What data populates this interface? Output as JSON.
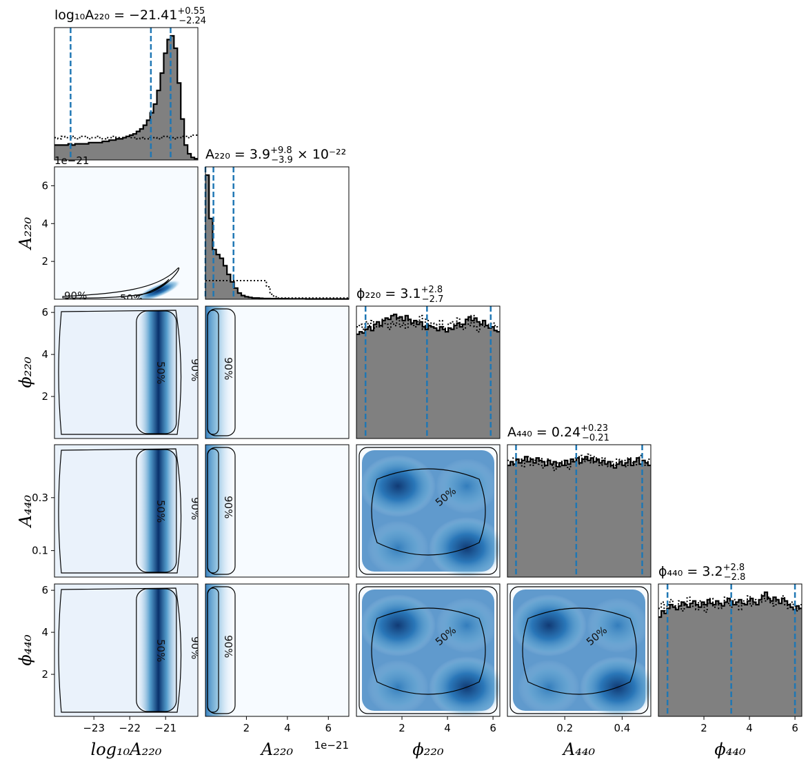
{
  "chart_data": {
    "type": "corner",
    "parameters": [
      {
        "key": "logA220",
        "label": "log₁₀A₂₂₀",
        "range": [
          -24.1,
          -20.1
        ],
        "ticks": [
          -23,
          -22,
          -21
        ],
        "tick_labels": [
          "−23",
          "−22",
          "−21"
        ]
      },
      {
        "key": "A220",
        "label": "A₂₂₀",
        "range": [
          0,
          7.0
        ],
        "ticks": [
          2,
          4,
          6
        ],
        "tick_labels": [
          "2",
          "4",
          "6"
        ],
        "offset_text": "1e−21"
      },
      {
        "key": "phi220",
        "label": "ϕ₂₂₀",
        "range": [
          0,
          6.3
        ],
        "ticks": [
          2,
          4,
          6
        ],
        "tick_labels": [
          "2",
          "4",
          "6"
        ]
      },
      {
        "key": "A440",
        "label": "A₄₄₀",
        "range": [
          0,
          0.5
        ],
        "ticks": [
          0.1,
          0.3
        ],
        "tick_labels": [
          "0.1",
          "0.3"
        ],
        "x_ticks": [
          0.2,
          0.4
        ],
        "x_tick_labels": [
          "0.2",
          "0.4"
        ]
      },
      {
        "key": "phi440",
        "label": "ϕ₄₄₀",
        "range": [
          0,
          6.3
        ],
        "ticks": [
          2,
          4,
          6
        ],
        "tick_labels": [
          "2",
          "4",
          "6"
        ]
      }
    ],
    "titles": [
      {
        "prefix": "log₁₀A₂₂₀ = −21.41",
        "sup": "+0.55",
        "sub": "−2.24",
        "suffix": ""
      },
      {
        "prefix": "A₂₂₀ = 3.9",
        "sup": "+9.8",
        "sub": "−3.9",
        "suffix": " × 10⁻²²"
      },
      {
        "prefix": "ϕ₂₂₀ = 3.1",
        "sup": "+2.8",
        "sub": "−2.7",
        "suffix": ""
      },
      {
        "prefix": "A₄₄₀ = 0.24",
        "sup": "+0.23",
        "sub": "−0.21",
        "suffix": ""
      },
      {
        "prefix": "ϕ₄₄₀ = 3.2",
        "sup": "+2.8",
        "sub": "−2.8",
        "suffix": ""
      }
    ],
    "quantiles": [
      [
        -23.65,
        -21.41,
        -20.86
      ],
      [
        0.0,
        0.39,
        1.37
      ],
      [
        0.4,
        3.1,
        5.9
      ],
      [
        0.03,
        0.24,
        0.47
      ],
      [
        0.4,
        3.2,
        6.0
      ]
    ],
    "histograms": [
      {
        "posterior": [
          0.12,
          0.12,
          0.12,
          0.12,
          0.13,
          0.12,
          0.13,
          0.13,
          0.13,
          0.13,
          0.14,
          0.14,
          0.14,
          0.14,
          0.15,
          0.15,
          0.16,
          0.16,
          0.17,
          0.17,
          0.18,
          0.19,
          0.2,
          0.21,
          0.23,
          0.25,
          0.28,
          0.32,
          0.38,
          0.45,
          0.56,
          0.7,
          0.86,
          0.97,
          1.0,
          0.9,
          0.62,
          0.33,
          0.12,
          0.05,
          0.02,
          0.01
        ],
        "prior": [
          0.18,
          0.17,
          0.19,
          0.18,
          0.18,
          0.19,
          0.17,
          0.18,
          0.19,
          0.18,
          0.17,
          0.18,
          0.19,
          0.18,
          0.17,
          0.18,
          0.18,
          0.19,
          0.18,
          0.17,
          0.18,
          0.19,
          0.18,
          0.18,
          0.17,
          0.18,
          0.17,
          0.17,
          0.18,
          0.18,
          0.17,
          0.18,
          0.19,
          0.18,
          0.18,
          0.17,
          0.18,
          0.19,
          0.19,
          0.18,
          0.2,
          0.2
        ]
      },
      {
        "posterior": [
          1.0,
          0.65,
          0.4,
          0.36,
          0.33,
          0.27,
          0.2,
          0.14,
          0.09,
          0.05,
          0.03,
          0.02,
          0.015,
          0.01,
          0.01,
          0.008,
          0.006,
          0.006,
          0.005,
          0.005,
          0.004,
          0.004,
          0.004,
          0.003,
          0.003,
          0.003,
          0.003,
          0.003,
          0.002,
          0.002,
          0.002,
          0.002,
          0.002,
          0.002,
          0.002,
          0.002,
          0.002,
          0.002,
          0.002,
          0.002
        ],
        "prior": [
          0.15,
          0.15,
          0.15,
          0.15,
          0.15,
          0.15,
          0.15,
          0.15,
          0.15,
          0.15,
          0.15,
          0.15,
          0.15,
          0.15,
          0.15,
          0.15,
          0.15,
          0.1,
          0.04,
          0.02,
          0.01,
          0.01,
          0.01,
          0.01,
          0.01,
          0.01,
          0.01,
          0.01,
          0.01,
          0.01,
          0.01,
          0.01,
          0.01,
          0.01,
          0.01,
          0.01,
          0.01,
          0.01,
          0.01,
          0.01
        ]
      },
      {
        "posterior": [
          0.84,
          0.86,
          0.85,
          0.88,
          0.9,
          0.87,
          0.92,
          0.94,
          0.91,
          0.95,
          0.97,
          0.96,
          0.99,
          1.0,
          0.97,
          0.98,
          0.95,
          0.99,
          0.96,
          0.93,
          0.95,
          0.92,
          0.94,
          0.9,
          0.88,
          0.91,
          0.9,
          0.89,
          0.87,
          0.9,
          0.88,
          0.86,
          0.89,
          0.88,
          0.91,
          0.93,
          0.9,
          0.92,
          0.96,
          0.98,
          0.95,
          0.97,
          0.94,
          0.92,
          0.95,
          0.91,
          0.89,
          0.9,
          0.87,
          0.86
        ],
        "prior": [
          0.9,
          0.92,
          0.88,
          0.94,
          0.91,
          0.95,
          0.89,
          0.93,
          0.9,
          0.96,
          0.92,
          0.88,
          0.94,
          0.91,
          0.97,
          0.9,
          0.93,
          0.89,
          0.95,
          0.92,
          0.9,
          0.94,
          0.99,
          0.88,
          0.96,
          0.91,
          0.93,
          0.89,
          0.92,
          0.95,
          0.9,
          0.86,
          0.93,
          0.94,
          0.89,
          0.97,
          0.92,
          0.88,
          0.95,
          0.91,
          0.99,
          0.9,
          0.86,
          0.94,
          0.9,
          0.92,
          0.89,
          0.93,
          0.91,
          0.9
        ]
      },
      {
        "posterior": [
          0.9,
          0.93,
          0.91,
          0.95,
          0.92,
          0.94,
          0.97,
          0.93,
          0.95,
          0.92,
          0.96,
          0.94,
          0.93,
          0.9,
          0.94,
          0.91,
          0.93,
          0.89,
          0.92,
          0.9,
          0.94,
          0.91,
          0.95,
          0.93,
          0.96,
          0.92,
          0.95,
          0.97,
          0.94,
          0.96,
          0.93,
          0.95,
          0.92,
          0.94,
          0.91,
          0.93,
          0.9,
          0.88,
          0.91,
          0.93,
          0.9,
          0.92,
          0.95,
          0.9,
          0.93,
          0.96,
          0.91,
          0.94,
          0.92,
          0.9
        ],
        "prior": [
          0.94,
          0.9,
          0.96,
          0.92,
          0.95,
          0.89,
          0.93,
          0.97,
          0.9,
          0.94,
          0.91,
          0.96,
          0.88,
          0.93,
          0.95,
          0.9,
          0.86,
          0.92,
          0.89,
          0.94,
          0.9,
          0.87,
          0.93,
          0.96,
          0.91,
          0.98,
          0.93,
          0.95,
          0.99,
          0.92,
          0.97,
          0.94,
          0.9,
          0.96,
          0.92,
          0.89,
          0.93,
          0.9,
          0.95,
          0.91,
          0.94,
          0.89,
          0.96,
          0.92,
          0.9,
          0.94,
          0.98,
          0.93,
          0.9,
          0.95
        ]
      },
      {
        "posterior": [
          0.8,
          0.85,
          0.83,
          0.87,
          0.9,
          0.88,
          0.86,
          0.89,
          0.92,
          0.9,
          0.88,
          0.91,
          0.93,
          0.9,
          0.88,
          0.92,
          0.9,
          0.94,
          0.91,
          0.9,
          0.93,
          0.91,
          0.89,
          0.92,
          0.95,
          0.93,
          0.9,
          0.92,
          0.94,
          0.91,
          0.9,
          0.93,
          0.95,
          0.92,
          0.9,
          0.94,
          0.97,
          1.0,
          0.95,
          0.93,
          0.96,
          0.94,
          0.91,
          0.95,
          0.93,
          0.9,
          0.88,
          0.86,
          0.89,
          0.87
        ],
        "prior": [
          0.87,
          0.92,
          0.85,
          0.9,
          0.94,
          0.89,
          0.87,
          0.93,
          0.85,
          0.91,
          0.96,
          0.88,
          0.92,
          0.86,
          0.93,
          0.9,
          0.84,
          0.91,
          0.95,
          0.88,
          0.93,
          0.87,
          0.9,
          0.96,
          0.91,
          0.88,
          0.94,
          0.9,
          0.86,
          0.93,
          0.91,
          0.97,
          0.89,
          0.94,
          0.9,
          0.92,
          0.98,
          0.93,
          0.96,
          0.91,
          0.89,
          0.94,
          0.92,
          0.97,
          0.9,
          0.87,
          0.92,
          0.89,
          0.85,
          0.9
        ]
      }
    ],
    "contour_labels": [
      "90%",
      "50%"
    ],
    "colors": {
      "hist_fill": "#808080",
      "quantile_line": "#1f77b4",
      "density_low": "#f7fbff",
      "density_high": "#08306b",
      "contour": "#000000"
    }
  }
}
